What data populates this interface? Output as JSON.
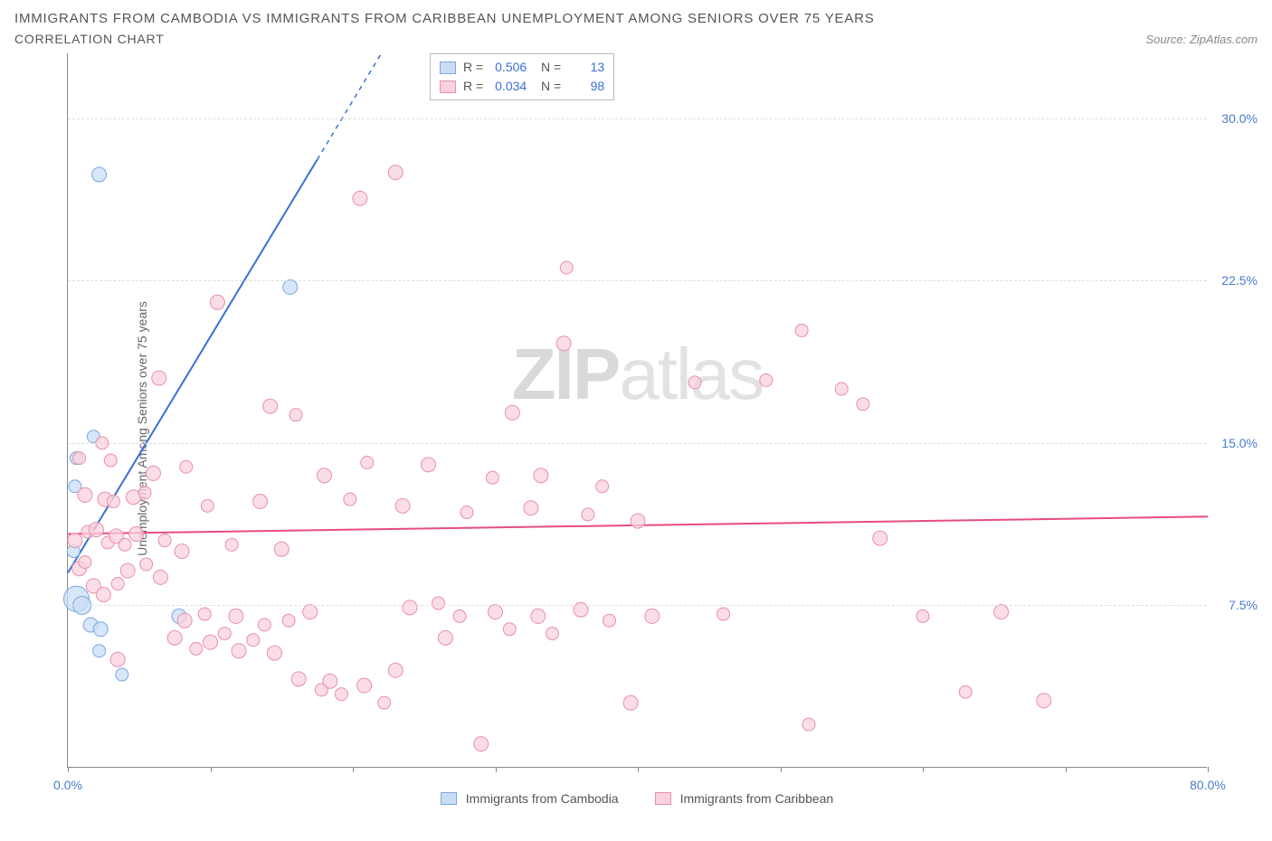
{
  "title": "IMMIGRANTS FROM CAMBODIA VS IMMIGRANTS FROM CARIBBEAN UNEMPLOYMENT AMONG SENIORS OVER 75 YEARS",
  "subtitle": "CORRELATION CHART",
  "source": "Source: ZipAtlas.com",
  "ylabel": "Unemployment Among Seniors over 75 years",
  "watermark": {
    "bold": "ZIP",
    "thin": "atlas"
  },
  "chart": {
    "type": "scatter",
    "xlim": [
      0,
      80
    ],
    "ylim": [
      0,
      33
    ],
    "xtick_positions": [
      0,
      10,
      20,
      30,
      40,
      50,
      60,
      70,
      80
    ],
    "xtick_labels": {
      "0": "0.0%",
      "80": "80.0%"
    },
    "ytick_positions": [
      7.5,
      15.0,
      22.5,
      30.0
    ],
    "ytick_labels": [
      "7.5%",
      "15.0%",
      "22.5%",
      "30.0%"
    ],
    "grid_color": "#dddddd",
    "axis_color": "#888888",
    "background_color": "#ffffff",
    "series": [
      {
        "name": "Immigrants from Cambodia",
        "fill": "#c9ddf5",
        "stroke": "#7aa8e0",
        "line_color": "#3a6fd8",
        "trend": {
          "x1": 0,
          "y1": 9.0,
          "x2": 22,
          "y2": 33,
          "dash_after_x": 17.5
        },
        "R": "0.506",
        "N": "13",
        "points": [
          {
            "x": 2.2,
            "y": 27.4,
            "r": 8
          },
          {
            "x": 15.6,
            "y": 22.2,
            "r": 8
          },
          {
            "x": 1.8,
            "y": 15.3,
            "r": 7
          },
          {
            "x": 0.6,
            "y": 14.3,
            "r": 7
          },
          {
            "x": 0.5,
            "y": 13.0,
            "r": 7
          },
          {
            "x": 0.4,
            "y": 10.0,
            "r": 7
          },
          {
            "x": 0.6,
            "y": 7.8,
            "r": 14
          },
          {
            "x": 1.0,
            "y": 7.5,
            "r": 10
          },
          {
            "x": 1.6,
            "y": 6.6,
            "r": 8
          },
          {
            "x": 2.3,
            "y": 6.4,
            "r": 8
          },
          {
            "x": 7.8,
            "y": 7.0,
            "r": 8
          },
          {
            "x": 2.2,
            "y": 5.4,
            "r": 7
          },
          {
            "x": 3.8,
            "y": 4.3,
            "r": 7
          }
        ]
      },
      {
        "name": "Immigrants from Caribbean",
        "fill": "#f9d2dd",
        "stroke": "#e890a9",
        "line_color": "#e74b84",
        "trend": {
          "x1": 0,
          "y1": 10.8,
          "x2": 80,
          "y2": 11.6
        },
        "R": "0.034",
        "N": "98",
        "points": [
          {
            "x": 23.0,
            "y": 27.5,
            "r": 8
          },
          {
            "x": 20.5,
            "y": 26.3,
            "r": 8
          },
          {
            "x": 35.0,
            "y": 23.1,
            "r": 7
          },
          {
            "x": 10.5,
            "y": 21.5,
            "r": 8
          },
          {
            "x": 51.5,
            "y": 20.2,
            "r": 7
          },
          {
            "x": 34.8,
            "y": 19.6,
            "r": 8
          },
          {
            "x": 49.0,
            "y": 17.9,
            "r": 7
          },
          {
            "x": 44.0,
            "y": 17.8,
            "r": 7
          },
          {
            "x": 54.3,
            "y": 17.5,
            "r": 7
          },
          {
            "x": 55.8,
            "y": 16.8,
            "r": 7
          },
          {
            "x": 6.4,
            "y": 18.0,
            "r": 8
          },
          {
            "x": 14.2,
            "y": 16.7,
            "r": 8
          },
          {
            "x": 16.0,
            "y": 16.3,
            "r": 7
          },
          {
            "x": 31.2,
            "y": 16.4,
            "r": 8
          },
          {
            "x": 0.8,
            "y": 14.3,
            "r": 7
          },
          {
            "x": 2.4,
            "y": 15.0,
            "r": 7
          },
          {
            "x": 3.0,
            "y": 14.2,
            "r": 7
          },
          {
            "x": 6.0,
            "y": 13.6,
            "r": 8
          },
          {
            "x": 8.3,
            "y": 13.9,
            "r": 7
          },
          {
            "x": 18.0,
            "y": 13.5,
            "r": 8
          },
          {
            "x": 21.0,
            "y": 14.1,
            "r": 7
          },
          {
            "x": 25.3,
            "y": 14.0,
            "r": 8
          },
          {
            "x": 29.8,
            "y": 13.4,
            "r": 7
          },
          {
            "x": 33.2,
            "y": 13.5,
            "r": 8
          },
          {
            "x": 37.5,
            "y": 13.0,
            "r": 7
          },
          {
            "x": 1.2,
            "y": 12.6,
            "r": 8
          },
          {
            "x": 2.6,
            "y": 12.4,
            "r": 8
          },
          {
            "x": 3.2,
            "y": 12.3,
            "r": 7
          },
          {
            "x": 4.6,
            "y": 12.5,
            "r": 8
          },
          {
            "x": 5.4,
            "y": 12.7,
            "r": 7
          },
          {
            "x": 9.8,
            "y": 12.1,
            "r": 7
          },
          {
            "x": 13.5,
            "y": 12.3,
            "r": 8
          },
          {
            "x": 19.8,
            "y": 12.4,
            "r": 7
          },
          {
            "x": 23.5,
            "y": 12.1,
            "r": 8
          },
          {
            "x": 28.0,
            "y": 11.8,
            "r": 7
          },
          {
            "x": 32.5,
            "y": 12.0,
            "r": 8
          },
          {
            "x": 36.5,
            "y": 11.7,
            "r": 7
          },
          {
            "x": 40.0,
            "y": 11.4,
            "r": 8
          },
          {
            "x": 0.5,
            "y": 10.5,
            "r": 8
          },
          {
            "x": 1.4,
            "y": 10.9,
            "r": 7
          },
          {
            "x": 2.0,
            "y": 11.0,
            "r": 8
          },
          {
            "x": 2.8,
            "y": 10.4,
            "r": 7
          },
          {
            "x": 3.4,
            "y": 10.7,
            "r": 8
          },
          {
            "x": 4.0,
            "y": 10.3,
            "r": 7
          },
          {
            "x": 4.8,
            "y": 10.8,
            "r": 8
          },
          {
            "x": 6.8,
            "y": 10.5,
            "r": 7
          },
          {
            "x": 8.0,
            "y": 10.0,
            "r": 8
          },
          {
            "x": 11.5,
            "y": 10.3,
            "r": 7
          },
          {
            "x": 15.0,
            "y": 10.1,
            "r": 8
          },
          {
            "x": 57.0,
            "y": 10.6,
            "r": 8
          },
          {
            "x": 0.8,
            "y": 9.2,
            "r": 8
          },
          {
            "x": 1.2,
            "y": 9.5,
            "r": 7
          },
          {
            "x": 4.2,
            "y": 9.1,
            "r": 8
          },
          {
            "x": 5.5,
            "y": 9.4,
            "r": 7
          },
          {
            "x": 6.5,
            "y": 8.8,
            "r": 8
          },
          {
            "x": 1.8,
            "y": 8.4,
            "r": 8
          },
          {
            "x": 3.5,
            "y": 8.5,
            "r": 7
          },
          {
            "x": 2.5,
            "y": 8.0,
            "r": 8
          },
          {
            "x": 7.5,
            "y": 6.0,
            "r": 8
          },
          {
            "x": 9.0,
            "y": 5.5,
            "r": 7
          },
          {
            "x": 10.0,
            "y": 5.8,
            "r": 8
          },
          {
            "x": 11.0,
            "y": 6.2,
            "r": 7
          },
          {
            "x": 12.0,
            "y": 5.4,
            "r": 8
          },
          {
            "x": 13.0,
            "y": 5.9,
            "r": 7
          },
          {
            "x": 14.5,
            "y": 5.3,
            "r": 8
          },
          {
            "x": 8.2,
            "y": 6.8,
            "r": 8
          },
          {
            "x": 9.6,
            "y": 7.1,
            "r": 7
          },
          {
            "x": 11.8,
            "y": 7.0,
            "r": 8
          },
          {
            "x": 13.8,
            "y": 6.6,
            "r": 7
          },
          {
            "x": 16.2,
            "y": 4.1,
            "r": 8
          },
          {
            "x": 17.8,
            "y": 3.6,
            "r": 7
          },
          {
            "x": 18.4,
            "y": 4.0,
            "r": 8
          },
          {
            "x": 19.2,
            "y": 3.4,
            "r": 7
          },
          {
            "x": 20.8,
            "y": 3.8,
            "r": 8
          },
          {
            "x": 22.2,
            "y": 3.0,
            "r": 7
          },
          {
            "x": 23.0,
            "y": 4.5,
            "r": 8
          },
          {
            "x": 15.5,
            "y": 6.8,
            "r": 7
          },
          {
            "x": 17.0,
            "y": 7.2,
            "r": 8
          },
          {
            "x": 24.0,
            "y": 7.4,
            "r": 8
          },
          {
            "x": 26.0,
            "y": 7.6,
            "r": 7
          },
          {
            "x": 26.5,
            "y": 6.0,
            "r": 8
          },
          {
            "x": 27.5,
            "y": 7.0,
            "r": 7
          },
          {
            "x": 30.0,
            "y": 7.2,
            "r": 8
          },
          {
            "x": 31.0,
            "y": 6.4,
            "r": 7
          },
          {
            "x": 33.0,
            "y": 7.0,
            "r": 8
          },
          {
            "x": 34.0,
            "y": 6.2,
            "r": 7
          },
          {
            "x": 36.0,
            "y": 7.3,
            "r": 8
          },
          {
            "x": 38.0,
            "y": 6.8,
            "r": 7
          },
          {
            "x": 41.0,
            "y": 7.0,
            "r": 8
          },
          {
            "x": 46.0,
            "y": 7.1,
            "r": 7
          },
          {
            "x": 39.5,
            "y": 3.0,
            "r": 8
          },
          {
            "x": 29.0,
            "y": 1.1,
            "r": 8
          },
          {
            "x": 52.0,
            "y": 2.0,
            "r": 7
          },
          {
            "x": 65.5,
            "y": 7.2,
            "r": 8
          },
          {
            "x": 68.5,
            "y": 3.1,
            "r": 8
          },
          {
            "x": 63.0,
            "y": 3.5,
            "r": 7
          },
          {
            "x": 60.0,
            "y": 7.0,
            "r": 7
          },
          {
            "x": 3.5,
            "y": 5.0,
            "r": 8
          }
        ]
      }
    ]
  },
  "bottom_legend": [
    {
      "label": "Immigrants from Cambodia",
      "fill": "#c9ddf5",
      "stroke": "#7aa8e0"
    },
    {
      "label": "Immigrants from Caribbean",
      "fill": "#f9d2dd",
      "stroke": "#e890a9"
    }
  ]
}
